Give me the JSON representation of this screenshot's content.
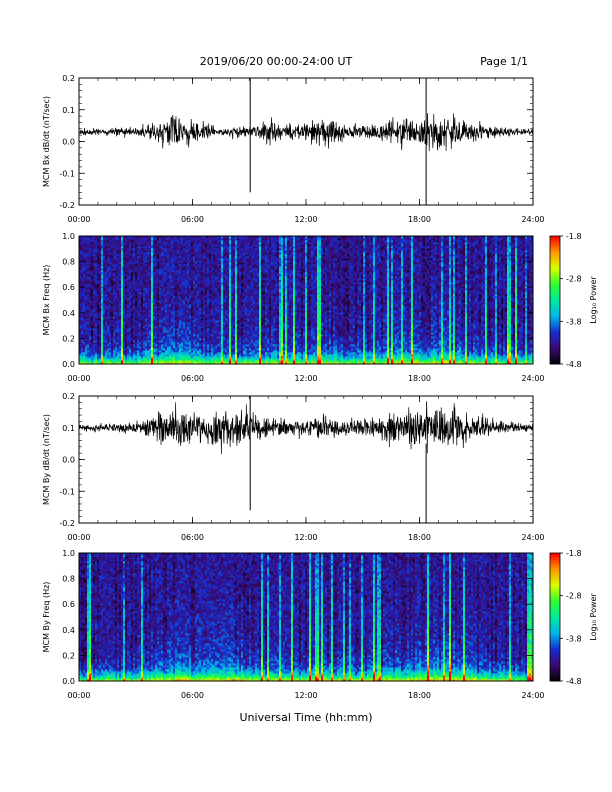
{
  "header": {
    "title": "2019/06/20  00:00-24:00 UT",
    "page": "Page 1/1"
  },
  "footer": {
    "xlabel": "Universal Time (hh:mm)"
  },
  "colorbar": {
    "label": "Log₁₀ Power",
    "tick_labels": [
      "-1.8",
      "-2.8",
      "-3.8",
      "-4.8"
    ],
    "tick_values": [
      -1.8,
      -2.8,
      -3.8,
      -4.8
    ],
    "range": [
      -4.8,
      -1.8
    ],
    "colors": [
      "#000000",
      "#3a0a6e",
      "#1a2acc",
      "#00b6e8",
      "#00e8a0",
      "#30ff30",
      "#d8ff00",
      "#ff9a00",
      "#ff0000"
    ]
  },
  "chart_data": [
    {
      "type": "line",
      "ylabel": "MCM Bx dB/dt (nT/sec)",
      "ylim": [
        -0.2,
        0.2
      ],
      "yticks": [
        -0.2,
        -0.1,
        0.0,
        0.1,
        0.2
      ],
      "ytick_labels": [
        "-0.2",
        "-0.1",
        "0.0",
        "0.1",
        "0.2"
      ],
      "xlim": [
        0,
        24
      ],
      "xticks": [
        0,
        6,
        12,
        18,
        24
      ],
      "xtick_labels": [
        "00:00",
        "06:00",
        "12:00",
        "18:00",
        "24:00"
      ],
      "baseline": 0.03,
      "activity": [
        [
          0,
          0.006
        ],
        [
          3,
          0.01
        ],
        [
          4.5,
          0.03
        ],
        [
          5.5,
          0.035
        ],
        [
          6.5,
          0.02
        ],
        [
          7.5,
          0.01
        ],
        [
          9,
          0.012
        ],
        [
          10,
          0.025
        ],
        [
          11,
          0.015
        ],
        [
          12,
          0.02
        ],
        [
          13,
          0.03
        ],
        [
          14,
          0.018
        ],
        [
          15,
          0.015
        ],
        [
          16,
          0.022
        ],
        [
          17,
          0.03
        ],
        [
          18,
          0.035
        ],
        [
          19,
          0.038
        ],
        [
          20,
          0.03
        ],
        [
          21,
          0.02
        ],
        [
          22,
          0.012
        ],
        [
          24,
          0.006
        ]
      ],
      "spikes": [
        {
          "t": 9.05,
          "hi": 0.2,
          "lo": -0.16
        },
        {
          "t": 18.35,
          "hi": 0.2,
          "lo": -0.2
        }
      ]
    },
    {
      "type": "heatmap",
      "ylabel": "MCM Bx Freq (Hz)",
      "ylim": [
        0.0,
        1.0
      ],
      "yticks": [
        0.0,
        0.2,
        0.4,
        0.6,
        0.8,
        1.0
      ],
      "ytick_labels": [
        "0.0",
        "0.2",
        "0.4",
        "0.6",
        "0.8",
        "1.0"
      ],
      "xlim": [
        0,
        24
      ],
      "xticks": [
        0,
        6,
        12,
        18,
        24
      ],
      "xtick_labels": [
        "00:00",
        "06:00",
        "12:00",
        "18:00",
        "24:00"
      ],
      "zlim": [
        -4.8,
        -1.8
      ]
    },
    {
      "type": "line",
      "ylabel": "MCM By dB/dt (nT/sec)",
      "ylim": [
        -0.2,
        0.2
      ],
      "yticks": [
        -0.2,
        -0.1,
        0.0,
        0.1,
        0.2
      ],
      "ytick_labels": [
        "-0.2",
        "-0.1",
        "0.0",
        "0.1",
        "0.2"
      ],
      "xlim": [
        0,
        24
      ],
      "xticks": [
        0,
        6,
        12,
        18,
        24
      ],
      "xtick_labels": [
        "00:00",
        "06:00",
        "12:00",
        "18:00",
        "24:00"
      ],
      "baseline": 0.1,
      "activity": [
        [
          0,
          0.006
        ],
        [
          3,
          0.012
        ],
        [
          4,
          0.03
        ],
        [
          5.5,
          0.045
        ],
        [
          6.5,
          0.03
        ],
        [
          7.5,
          0.04
        ],
        [
          8.5,
          0.045
        ],
        [
          9.5,
          0.025
        ],
        [
          11,
          0.018
        ],
        [
          12,
          0.02
        ],
        [
          13,
          0.025
        ],
        [
          14,
          0.02
        ],
        [
          15,
          0.02
        ],
        [
          16,
          0.028
        ],
        [
          17,
          0.035
        ],
        [
          18,
          0.045
        ],
        [
          19,
          0.05
        ],
        [
          20,
          0.045
        ],
        [
          21,
          0.03
        ],
        [
          22,
          0.015
        ],
        [
          24,
          0.008
        ]
      ],
      "spikes": [
        {
          "t": 9.05,
          "hi": 0.2,
          "lo": -0.16
        },
        {
          "t": 18.35,
          "hi": 0.05,
          "lo": -0.2
        }
      ]
    },
    {
      "type": "heatmap",
      "ylabel": "MCM By Freq (Hz)",
      "ylim": [
        0.0,
        1.0
      ],
      "yticks": [
        0.0,
        0.2,
        0.4,
        0.6,
        0.8,
        1.0
      ],
      "ytick_labels": [
        "0.0",
        "0.2",
        "0.4",
        "0.6",
        "0.8",
        "1.0"
      ],
      "xlim": [
        0,
        24
      ],
      "xticks": [
        0,
        6,
        12,
        18,
        24
      ],
      "xtick_labels": [
        "00:00",
        "06:00",
        "12:00",
        "18:00",
        "24:00"
      ],
      "zlim": [
        -4.8,
        -1.8
      ]
    }
  ]
}
